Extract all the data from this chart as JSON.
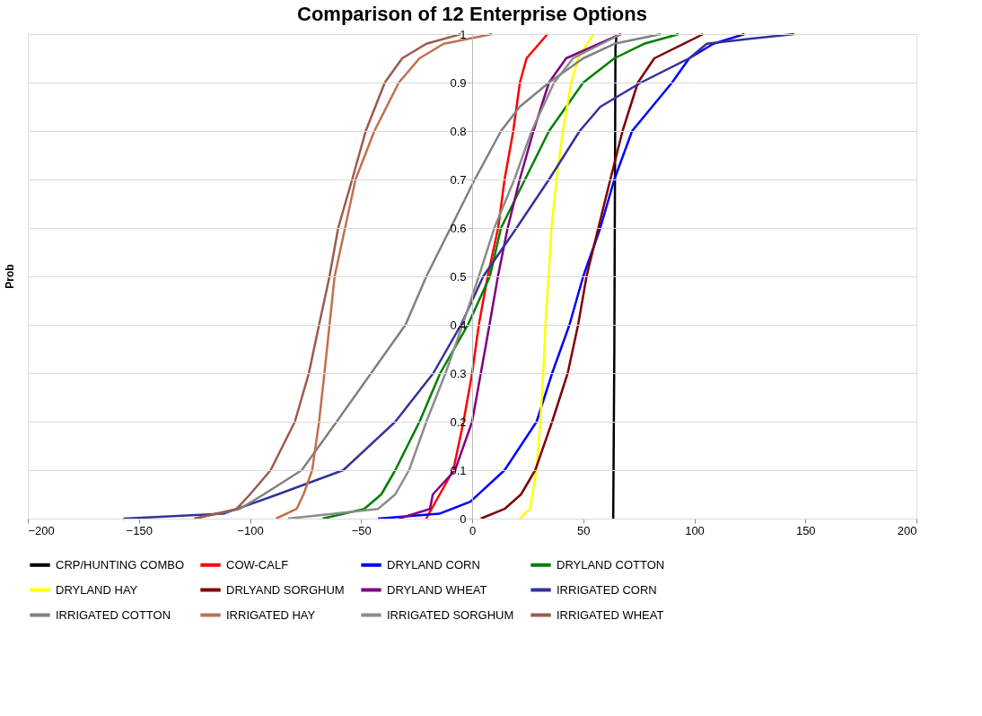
{
  "chart_data": {
    "type": "line",
    "title": "Comparison of 12 Enterprise Options",
    "ylabel": "Prob",
    "xlim": [
      -200,
      200
    ],
    "xticks": [
      -200,
      -150,
      -100,
      -50,
      0,
      50,
      100,
      150,
      200
    ],
    "ylim": [
      0,
      1
    ],
    "yticks": [
      0,
      0.1,
      0.2,
      0.3,
      0.4,
      0.5,
      0.6,
      0.7,
      0.8,
      0.9,
      1
    ],
    "grid": "y",
    "legend": "bottom",
    "marker": "none",
    "line_style": "solid",
    "series": [
      {
        "name": "CRP/HUNTING COMBO",
        "color": "#000000",
        "x": [
          63.5,
          64,
          64.5,
          65
        ],
        "values": [
          0,
          0.35,
          0.97,
          1
        ]
      },
      {
        "name": "COW-CALF",
        "color": "#ff0000",
        "x": [
          -20.7,
          -8.5,
          -3.9,
          0,
          3,
          7,
          11.7,
          14.6,
          18.5,
          21.5,
          24.5,
          33.9
        ],
        "values": [
          0,
          0.1,
          0.2,
          0.3,
          0.4,
          0.5,
          0.6,
          0.7,
          0.8,
          0.9,
          0.95,
          1
        ]
      },
      {
        "name": "DRYLAND CORN",
        "color": "#0000ff",
        "x": [
          -42.4,
          -14.8,
          -0.8,
          14.6,
          29,
          36,
          43.8,
          50,
          57.7,
          64,
          72,
          90,
          97.7,
          108.6,
          122.6
        ],
        "values": [
          0,
          0.01,
          0.035,
          0.1,
          0.2,
          0.3,
          0.4,
          0.5,
          0.6,
          0.7,
          0.8,
          0.9,
          0.95,
          0.98,
          1
        ]
      },
      {
        "name": "DRYLAND COTTON",
        "color": "#008000",
        "x": [
          -67.3,
          -48.6,
          -40.9,
          -34.6,
          -23.7,
          -14.4,
          -1.9,
          8,
          13,
          23.8,
          34.6,
          50,
          64,
          77.4,
          93
        ],
        "values": [
          0,
          0.02,
          0.05,
          0.1,
          0.2,
          0.3,
          0.4,
          0.5,
          0.6,
          0.7,
          0.8,
          0.9,
          0.95,
          0.98,
          1
        ]
      },
      {
        "name": "DRYLAND HAY",
        "color": "#ffff00",
        "x": [
          21.5,
          26,
          29,
          30.7,
          32,
          33,
          34.4,
          35.7,
          38,
          40.8,
          44.6,
          47.7,
          54.6
        ],
        "values": [
          0,
          0.02,
          0.1,
          0.2,
          0.3,
          0.4,
          0.5,
          0.6,
          0.7,
          0.8,
          0.9,
          0.95,
          1
        ]
      },
      {
        "name": "DRLYAND SORGHUM",
        "color": "#800000",
        "x": [
          3.9,
          14.6,
          22,
          28.4,
          36,
          43,
          47.7,
          51.5,
          56.8,
          62.2,
          67.7,
          74.6,
          82,
          104
        ],
        "values": [
          0,
          0.02,
          0.05,
          0.1,
          0.2,
          0.3,
          0.4,
          0.5,
          0.6,
          0.7,
          0.8,
          0.9,
          0.95,
          1
        ]
      },
      {
        "name": "DRYLAND WHEAT",
        "color": "#800080",
        "x": [
          -33,
          -19,
          -17.7,
          -7.7,
          0,
          3.9,
          7.8,
          11.6,
          16,
          21.4,
          27.6,
          34.6,
          42.3,
          67
        ],
        "values": [
          0,
          0.02,
          0.05,
          0.1,
          0.2,
          0.3,
          0.4,
          0.5,
          0.6,
          0.7,
          0.8,
          0.9,
          0.95,
          1
        ]
      },
      {
        "name": "IRRIGATED CORN",
        "color": "#333399",
        "x": [
          -157,
          -112,
          -87.5,
          -58,
          -34.6,
          -17.5,
          -5,
          5,
          20,
          34.6,
          48.4,
          57.7,
          76,
          97.7,
          105.6,
          124,
          145
        ],
        "values": [
          0,
          0.01,
          0.05,
          0.1,
          0.2,
          0.3,
          0.4,
          0.5,
          0.6,
          0.7,
          0.8,
          0.85,
          0.9,
          0.95,
          0.98,
          0.99,
          1
        ]
      },
      {
        "name": "IRRIGATED COTTON",
        "color": "#808080",
        "x": [
          -125,
          -104.7,
          -93.8,
          -76.7,
          -61,
          -45.5,
          -30,
          -20.6,
          -9.7,
          1.2,
          13,
          21.4,
          34.6,
          50,
          64,
          85
        ],
        "values": [
          0,
          0.02,
          0.05,
          0.1,
          0.2,
          0.3,
          0.4,
          0.5,
          0.6,
          0.7,
          0.8,
          0.85,
          0.9,
          0.95,
          0.98,
          1
        ]
      },
      {
        "name": "IRRIGATED HAY",
        "color": "#c0704d",
        "x": [
          -88.3,
          -79,
          -75.9,
          -72,
          -68.9,
          -66.5,
          -64.2,
          -61.9,
          -57.2,
          -52.5,
          -44,
          -33,
          -23.7,
          -12.8,
          9
        ],
        "values": [
          0,
          0.02,
          0.05,
          0.1,
          0.2,
          0.3,
          0.4,
          0.5,
          0.6,
          0.7,
          0.8,
          0.9,
          0.95,
          0.98,
          1
        ]
      },
      {
        "name": "IRRIGATED SORGHUM",
        "color": "#8c8c8c",
        "x": [
          -82.9,
          -42.4,
          -34.6,
          -28.4,
          -20.6,
          -12,
          -4.3,
          3,
          10,
          19,
          26.8,
          36.9,
          45.4,
          67
        ],
        "values": [
          0,
          0.02,
          0.05,
          0.1,
          0.2,
          0.3,
          0.4,
          0.5,
          0.6,
          0.7,
          0.8,
          0.9,
          0.95,
          1
        ]
      },
      {
        "name": "IRRIGATED WHEAT",
        "color": "#9c5a4c",
        "x": [
          -125,
          -106,
          -100,
          -90.7,
          -79.8,
          -73.5,
          -68.9,
          -64.2,
          -60.3,
          -54,
          -47.9,
          -39.3,
          -31.5,
          -20.6,
          -5
        ],
        "values": [
          0,
          0.02,
          0.05,
          0.1,
          0.2,
          0.3,
          0.4,
          0.5,
          0.6,
          0.7,
          0.8,
          0.9,
          0.95,
          0.98,
          1
        ]
      }
    ]
  }
}
